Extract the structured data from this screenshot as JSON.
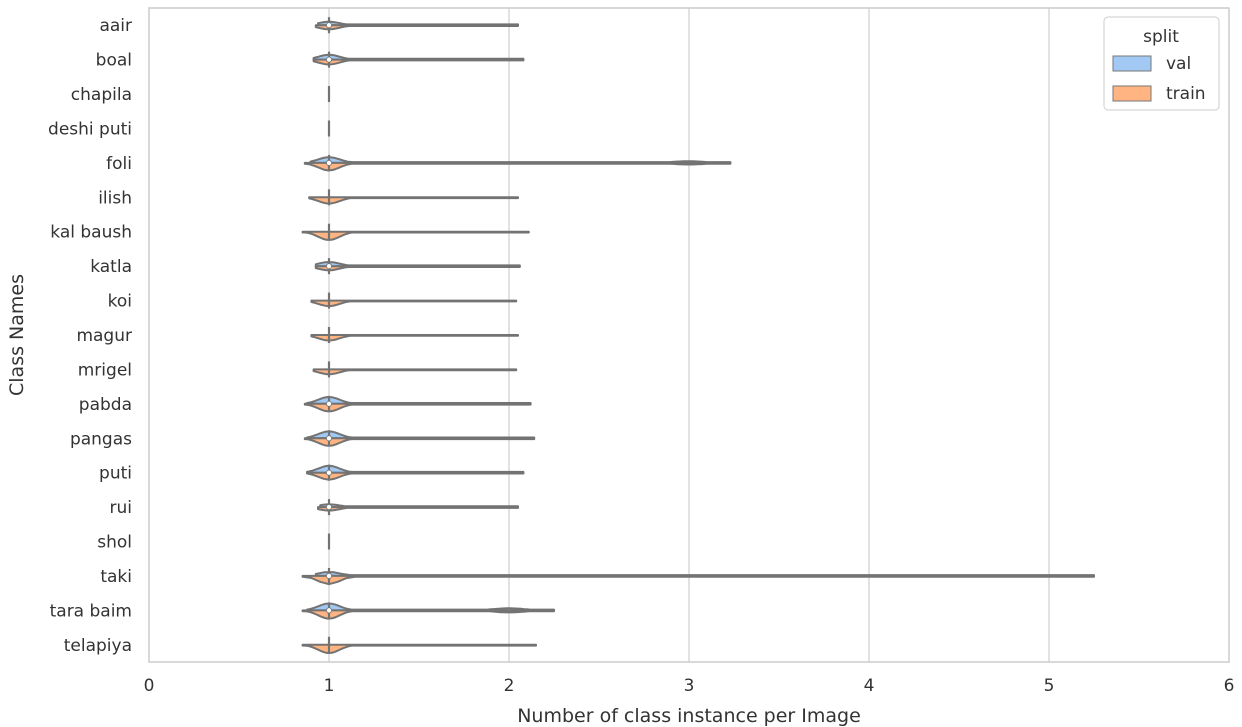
{
  "chart_data": {
    "type": "violin",
    "orientation": "horizontal",
    "title": "",
    "xlabel": "Number of class instance per Image",
    "ylabel": "Class Names",
    "xlim": [
      0,
      6
    ],
    "xticks": [
      "0",
      "1",
      "2",
      "3",
      "4",
      "5",
      "6"
    ],
    "grid": "vertical",
    "legend": {
      "title": "split",
      "position": "top-right",
      "entries": [
        {
          "name": "val",
          "color": "#a1c9f4"
        },
        {
          "name": "train",
          "color": "#ffb482"
        }
      ]
    },
    "categories": [
      "aair",
      "boal",
      "chapila",
      "deshi puti",
      "foli",
      "ilish",
      "kal baush",
      "katla",
      "koi",
      "magur",
      "mrigel",
      "pabda",
      "pangas",
      "puti",
      "rui",
      "shol",
      "taki",
      "tara baim",
      "telapiya"
    ],
    "series": [
      {
        "name": "val",
        "color": "#a1c9f4",
        "values": [
          {
            "min": 1,
            "max": 2,
            "median": 1,
            "half_width": 0.25,
            "right_x": 2.05,
            "spike": 0
          },
          {
            "min": 1,
            "max": 2,
            "median": 1,
            "half_width": 0.35,
            "right_x": 2.08,
            "spike": 0
          },
          null,
          null,
          {
            "min": 1,
            "max": 3,
            "median": 1,
            "half_width": 0.42,
            "right_x": 3.23,
            "spike": 0.12
          },
          null,
          null,
          {
            "min": 1,
            "max": 2,
            "median": 1,
            "half_width": 0.3,
            "right_x": 2.06,
            "spike": 0
          },
          null,
          null,
          null,
          {
            "min": 1,
            "max": 2,
            "median": 1,
            "half_width": 0.5,
            "right_x": 2.12,
            "spike": 0
          },
          {
            "min": 1,
            "max": 2,
            "median": 1,
            "half_width": 0.5,
            "right_x": 2.14,
            "spike": 0
          },
          {
            "min": 1,
            "max": 2,
            "median": 1,
            "half_width": 0.5,
            "right_x": 2.08,
            "spike": 0
          },
          {
            "min": 1,
            "max": 2,
            "median": 1,
            "half_width": 0.2,
            "right_x": 2.05,
            "spike": 0
          },
          null,
          {
            "min": 1,
            "max": 5,
            "median": 1,
            "half_width": 0.3,
            "right_x": 5.25,
            "spike": 0.02
          },
          {
            "min": 1,
            "max": 2,
            "median": 1,
            "half_width": 0.5,
            "right_x": 2.25,
            "spike": 0.15
          },
          null
        ]
      },
      {
        "name": "train",
        "color": "#ffb482",
        "values": [
          {
            "min": 1,
            "max": 2,
            "median": 1,
            "half_width": 0.3,
            "right_x": 2.05,
            "spike": 0
          },
          {
            "min": 1,
            "max": 2,
            "median": 1,
            "half_width": 0.35,
            "right_x": 2.08,
            "spike": 0
          },
          null,
          null,
          {
            "min": 1,
            "max": 3,
            "median": 1,
            "half_width": 0.55,
            "right_x": 3.23,
            "spike": 0.12
          },
          {
            "min": 1,
            "max": 2,
            "median": 1,
            "half_width": 0.45,
            "right_x": 2.05,
            "spike": 0
          },
          {
            "min": 1,
            "max": 2,
            "median": 1,
            "half_width": 0.6,
            "right_x": 2.11,
            "spike": 0
          },
          {
            "min": 1,
            "max": 2,
            "median": 1,
            "half_width": 0.3,
            "right_x": 2.06,
            "spike": 0
          },
          {
            "min": 1,
            "max": 2,
            "median": 1,
            "half_width": 0.4,
            "right_x": 2.04,
            "spike": 0
          },
          {
            "min": 1,
            "max": 2,
            "median": 1,
            "half_width": 0.4,
            "right_x": 2.05,
            "spike": 0
          },
          {
            "min": 1,
            "max": 2,
            "median": 1,
            "half_width": 0.35,
            "right_x": 2.04,
            "spike": 0
          },
          {
            "min": 1,
            "max": 2,
            "median": 1,
            "half_width": 0.55,
            "right_x": 2.12,
            "spike": 0
          },
          {
            "min": 1,
            "max": 2,
            "median": 1,
            "half_width": 0.55,
            "right_x": 2.14,
            "spike": 0
          },
          {
            "min": 1,
            "max": 2,
            "median": 1,
            "half_width": 0.5,
            "right_x": 2.08,
            "spike": 0
          },
          {
            "min": 1,
            "max": 2,
            "median": 1,
            "half_width": 0.25,
            "right_x": 2.05,
            "spike": 0
          },
          null,
          {
            "min": 1,
            "max": 5,
            "median": 1,
            "half_width": 0.6,
            "right_x": 5.25,
            "spike": 0.02
          },
          {
            "min": 1,
            "max": 2,
            "median": 1,
            "half_width": 0.6,
            "right_x": 2.25,
            "spike": 0.15
          },
          {
            "min": 1,
            "max": 2,
            "median": 1,
            "half_width": 0.6,
            "right_x": 2.15,
            "spike": 0
          }
        ]
      }
    ]
  }
}
